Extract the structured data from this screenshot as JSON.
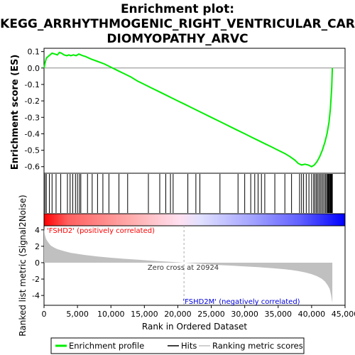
{
  "chart_data": {
    "type": "line",
    "title": "Enrichment plot: KEGG_ARRHYTHMOGENIC_RIGHT_VENTRICULAR_CARDIOMYOPATHY_ARVC",
    "title_lines": [
      "Enrichment plot:",
      "KEGG_ARRHYTHMOGENIC_RIGHT_VENTRICULAR_CAR",
      "DIOMYOPATHY_ARVC"
    ],
    "es_panel": {
      "ylabel": "Enrichment score (ES)",
      "ylim": [
        -0.64,
        0.12
      ],
      "yticks": [
        0.1,
        0.0,
        -0.1,
        -0.2,
        -0.3,
        -0.4,
        -0.5,
        -0.6
      ],
      "ytick_labels": [
        "0.1",
        "0.0",
        "-0.1",
        "-0.2",
        "-0.3",
        "-0.4",
        "-0.5",
        "-0.6"
      ],
      "line_color": "#00ee00",
      "series": [
        {
          "name": "Enrichment profile",
          "x": [
            0,
            150,
            350,
            600,
            900,
            1200,
            1600,
            2000,
            2300,
            2600,
            3000,
            3400,
            3700,
            4000,
            4400,
            4800,
            5200,
            5500,
            5800,
            6200,
            7000,
            8000,
            9000,
            10000,
            11000,
            12000,
            13000,
            14000,
            15000,
            16000,
            17000,
            18000,
            19000,
            20000,
            21000,
            22000,
            23000,
            24000,
            25000,
            26000,
            27000,
            28000,
            29000,
            30000,
            31000,
            32000,
            33000,
            34000,
            35000,
            36000,
            36800,
            37500,
            38000,
            38500,
            39000,
            39500,
            40000,
            40400,
            40800,
            41200,
            41600,
            42000,
            42300,
            42600,
            42800,
            43000,
            43100
          ],
          "y": [
            0.0,
            0.03,
            0.06,
            0.07,
            0.08,
            0.09,
            0.085,
            0.08,
            0.095,
            0.09,
            0.08,
            0.075,
            0.08,
            0.075,
            0.08,
            0.075,
            0.085,
            0.08,
            0.075,
            0.07,
            0.055,
            0.04,
            0.025,
            0.005,
            -0.015,
            -0.035,
            -0.055,
            -0.08,
            -0.1,
            -0.12,
            -0.14,
            -0.16,
            -0.18,
            -0.2,
            -0.22,
            -0.24,
            -0.26,
            -0.28,
            -0.3,
            -0.32,
            -0.34,
            -0.36,
            -0.38,
            -0.4,
            -0.42,
            -0.44,
            -0.46,
            -0.48,
            -0.5,
            -0.52,
            -0.54,
            -0.56,
            -0.58,
            -0.59,
            -0.585,
            -0.59,
            -0.6,
            -0.59,
            -0.57,
            -0.54,
            -0.5,
            -0.45,
            -0.4,
            -0.33,
            -0.25,
            -0.12,
            0.0
          ]
        }
      ]
    },
    "hits": {
      "name": "Hits",
      "x": [
        150,
        350,
        800,
        1200,
        1800,
        2500,
        3500,
        3900,
        4300,
        4700,
        5000,
        5300,
        5500,
        6500,
        7200,
        8000,
        8800,
        9700,
        11200,
        12500,
        15600,
        17300,
        18200,
        18900,
        19300,
        21500,
        22700,
        23300,
        26300,
        29000,
        30000,
        30900,
        31500,
        32000,
        32500,
        33000,
        34500,
        36000,
        37000,
        38200,
        38500,
        38800,
        39200,
        39600,
        40000,
        40300,
        40500,
        40700,
        40900,
        41100,
        41300,
        41500,
        41700,
        41900,
        42100,
        42250,
        42400,
        42500,
        42600,
        42700,
        42800,
        42850,
        42900,
        42950,
        43000,
        43050,
        43100
      ]
    },
    "heatmap": {
      "gradient": [
        "#ff0000",
        "#ff6060",
        "#ffb0b0",
        "#ffe0f0",
        "#e0e0ff",
        "#a0a0ff",
        "#6060ff",
        "#0000ff"
      ],
      "gradient_positions": [
        0,
        0.08,
        0.3,
        0.45,
        0.52,
        0.7,
        0.85,
        1
      ]
    },
    "metric_panel": {
      "ylabel": "Ranked list metric (Signal2Noise)",
      "ylim": [
        -5.2,
        4.5
      ],
      "yticks": [
        4,
        2,
        0,
        -2,
        -4
      ],
      "ytick_labels": [
        "4",
        "2",
        "0",
        "-2",
        "-4"
      ],
      "x": [
        0,
        100,
        300,
        600,
        1000,
        1500,
        2000,
        3000,
        4000,
        6000,
        8000,
        10000,
        12000,
        14000,
        16000,
        18000,
        20000,
        20924,
        22000,
        24000,
        26000,
        28000,
        30000,
        32000,
        34000,
        36000,
        37000,
        38000,
        39000,
        40000,
        40800,
        41500,
        42000,
        42400,
        42700,
        42900,
        43100
      ],
      "y": [
        4.2,
        3.5,
        2.9,
        2.5,
        2.1,
        1.85,
        1.65,
        1.4,
        1.2,
        0.95,
        0.75,
        0.6,
        0.47,
        0.36,
        0.25,
        0.15,
        0.05,
        0.0,
        -0.07,
        -0.18,
        -0.28,
        -0.36,
        -0.45,
        -0.55,
        -0.66,
        -0.8,
        -0.9,
        -1.02,
        -1.18,
        -1.4,
        -1.65,
        -1.95,
        -2.3,
        -2.75,
        -3.2,
        -3.9,
        -4.9
      ],
      "fill_color": "#c0c0c0"
    },
    "x_axis": {
      "label": "Rank in Ordered Dataset",
      "xlim": [
        0,
        45000
      ],
      "xticks": [
        0,
        5000,
        10000,
        15000,
        20000,
        25000,
        30000,
        35000,
        40000,
        45000
      ],
      "xtick_labels": [
        "0",
        "5,000",
        "10,000",
        "15,000",
        "20,000",
        "25,000",
        "30,000",
        "35,000",
        "40,000",
        "45,000"
      ]
    },
    "annotations": {
      "positive": "'FSHD2' (positively correlated)",
      "positive_color": "#ff0000",
      "negative": "'FSHD2M' (negatively correlated)",
      "negative_color": "#0000dd",
      "zero_cross": "Zero cross at 20924",
      "zero_cross_x": 20924
    },
    "legend": {
      "placement": "bottom",
      "items": [
        {
          "name": "Enrichment profile",
          "color": "#00ee00"
        },
        {
          "name": "Hits",
          "color": "#000000"
        },
        {
          "name": "Ranking metric scores",
          "color": "#c0c0c0"
        }
      ]
    }
  }
}
